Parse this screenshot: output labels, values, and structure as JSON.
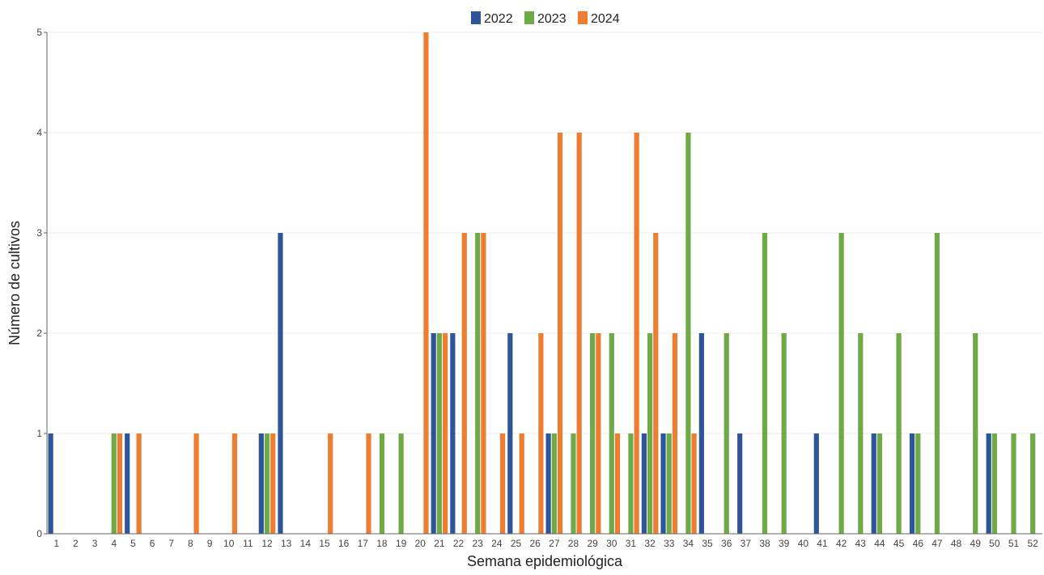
{
  "chart_data": {
    "type": "bar",
    "title": "",
    "xlabel": "Semana epidemiológica",
    "ylabel": "Número de cultivos",
    "ylim": [
      0,
      5
    ],
    "yticks": [
      0,
      1,
      2,
      3,
      4,
      5
    ],
    "grid": true,
    "legend_position": "top-center",
    "categories": [
      "1",
      "2",
      "3",
      "4",
      "5",
      "6",
      "7",
      "8",
      "9",
      "10",
      "11",
      "12",
      "13",
      "14",
      "15",
      "16",
      "17",
      "18",
      "19",
      "20",
      "21",
      "22",
      "23",
      "24",
      "25",
      "26",
      "27",
      "28",
      "29",
      "30",
      "31",
      "32",
      "33",
      "34",
      "35",
      "36",
      "37",
      "38",
      "39",
      "40",
      "41",
      "42",
      "43",
      "44",
      "45",
      "46",
      "47",
      "48",
      "49",
      "50",
      "51",
      "52"
    ],
    "series": [
      {
        "name": "2022",
        "color": "#2e5597",
        "values": [
          1,
          0,
          0,
          0,
          1,
          0,
          0,
          0,
          0,
          0,
          0,
          1,
          3,
          0,
          0,
          0,
          0,
          0,
          0,
          0,
          2,
          2,
          0,
          0,
          2,
          0,
          1,
          0,
          0,
          0,
          0,
          1,
          1,
          0,
          2,
          0,
          1,
          0,
          0,
          0,
          1,
          0,
          0,
          1,
          0,
          1,
          0,
          0,
          0,
          1,
          0,
          0
        ]
      },
      {
        "name": "2023",
        "color": "#6eab47",
        "values": [
          0,
          0,
          0,
          1,
          0,
          0,
          0,
          0,
          0,
          0,
          0,
          1,
          0,
          0,
          0,
          0,
          0,
          1,
          1,
          0,
          2,
          0,
          3,
          0,
          0,
          0,
          1,
          1,
          2,
          2,
          1,
          2,
          1,
          4,
          0,
          2,
          0,
          3,
          2,
          0,
          0,
          3,
          2,
          1,
          2,
          1,
          3,
          0,
          2,
          1,
          1,
          1
        ]
      },
      {
        "name": "2024",
        "color": "#ed7d31",
        "values": [
          0,
          0,
          0,
          1,
          1,
          0,
          0,
          1,
          0,
          1,
          0,
          1,
          0,
          0,
          1,
          0,
          1,
          0,
          0,
          5,
          2,
          3,
          3,
          1,
          1,
          2,
          4,
          4,
          2,
          1,
          4,
          3,
          2,
          1,
          0,
          0,
          0,
          0,
          0,
          0,
          0,
          0,
          0,
          0,
          0,
          0,
          0,
          0,
          0,
          0,
          0,
          0
        ]
      }
    ]
  }
}
